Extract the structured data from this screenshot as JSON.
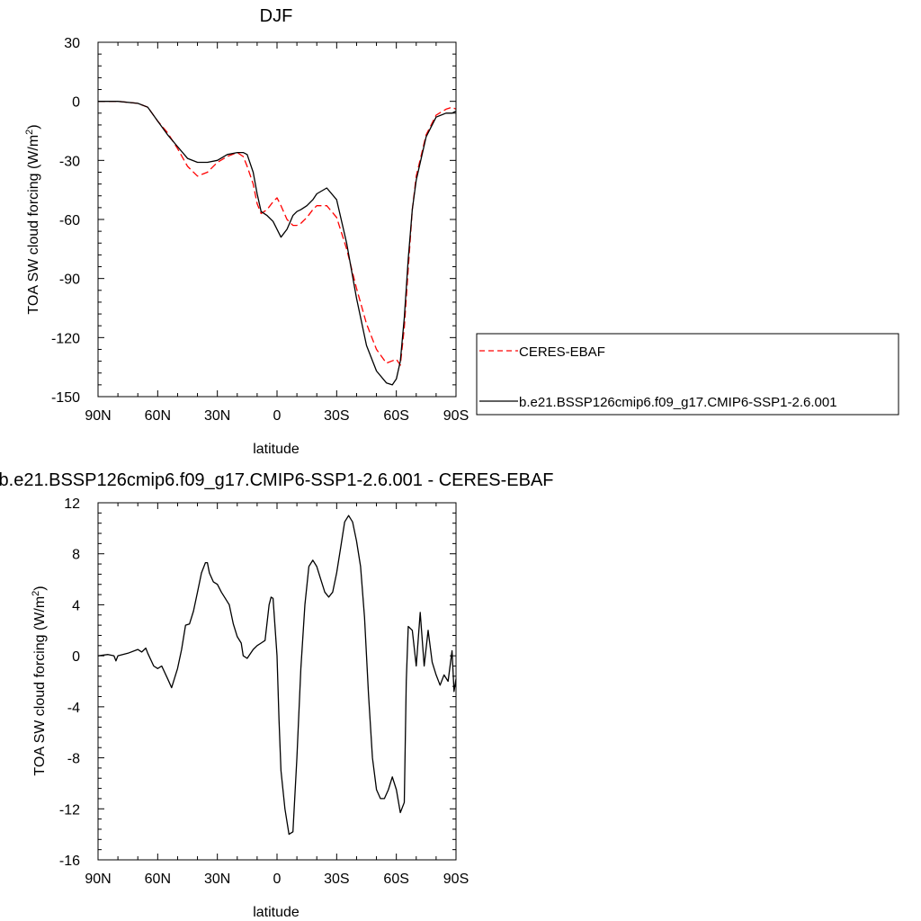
{
  "chart_data": [
    {
      "type": "line",
      "title": "DJF",
      "xlabel": "latitude",
      "ylabel": "TOA SW cloud forcing (W/m",
      "ylabel_sup": "2",
      "ylabel_close": ")",
      "xlim": [
        90,
        -90
      ],
      "ylim": [
        -150,
        30
      ],
      "x_ticks": [
        90,
        60,
        30,
        0,
        -30,
        -60,
        -90
      ],
      "x_tick_labels": [
        "90N",
        "60N",
        "30N",
        "0",
        "30S",
        "60S",
        "90S"
      ],
      "y_ticks": [
        30,
        0,
        -30,
        -60,
        -90,
        -120,
        -150
      ],
      "y_tick_labels": [
        "30",
        "0",
        "-30",
        "-60",
        "-90",
        "-120",
        "-150"
      ],
      "grid": false,
      "legend": {
        "placement": "right",
        "entries": [
          {
            "label": "CERES-EBAF",
            "color": "#ff0000",
            "dash": "dashed"
          },
          {
            "label": "b.e21.BSSP126cmip6.f09_g17.CMIP6-SSP1-2.6.001",
            "color": "#000000",
            "dash": "solid"
          }
        ]
      },
      "series": [
        {
          "name": "CERES-EBAF",
          "color": "#ff0000",
          "dash": "dashed",
          "x": [
            90,
            80,
            70,
            65,
            60,
            55,
            50,
            45,
            40,
            35,
            30,
            25,
            20,
            17,
            15,
            12,
            10,
            8,
            5,
            2,
            0,
            -2,
            -5,
            -8,
            -10,
            -12,
            -15,
            -18,
            -20,
            -25,
            -30,
            -35,
            -40,
            -45,
            -50,
            -55,
            -60,
            -62,
            -64,
            -66,
            -68,
            -70,
            -75,
            -80,
            -85,
            -88,
            -90
          ],
          "y": [
            0,
            0,
            -1,
            -3,
            -10,
            -16,
            -24,
            -33,
            -38,
            -36,
            -31,
            -28,
            -26,
            -28,
            -33,
            -42,
            -52,
            -57,
            -55,
            -51,
            -49,
            -53,
            -60,
            -63,
            -63,
            -62,
            -59,
            -55,
            -53,
            -53,
            -59,
            -75,
            -95,
            -113,
            -126,
            -133,
            -131,
            -134,
            -115,
            -85,
            -55,
            -38,
            -17,
            -7,
            -4,
            -3,
            -4
          ]
        },
        {
          "name": "b.e21.BSSP126cmip6.f09_g17.CMIP6-SSP1-2.6.001",
          "color": "#000000",
          "dash": "solid",
          "x": [
            90,
            80,
            70,
            65,
            60,
            55,
            50,
            45,
            40,
            35,
            30,
            25,
            20,
            17,
            15,
            12,
            10,
            8,
            5,
            2,
            0,
            -2,
            -5,
            -8,
            -10,
            -12,
            -15,
            -18,
            -20,
            -25,
            -30,
            -35,
            -40,
            -45,
            -50,
            -55,
            -58,
            -60,
            -62,
            -64,
            -66,
            -68,
            -70,
            -75,
            -80,
            -85,
            -88,
            -90
          ],
          "y": [
            0,
            0,
            -1,
            -3,
            -10,
            -17,
            -23,
            -29,
            -31,
            -31,
            -30,
            -27,
            -26,
            -26,
            -27,
            -36,
            -47,
            -56,
            -58,
            -61,
            -65,
            -69,
            -65,
            -58,
            -56,
            -55,
            -53,
            -50,
            -47,
            -44,
            -50,
            -72,
            -100,
            -124,
            -137,
            -143,
            -144,
            -141,
            -132,
            -110,
            -80,
            -55,
            -40,
            -18,
            -8,
            -6,
            -6,
            -5
          ]
        }
      ]
    },
    {
      "type": "line",
      "title": "b.e21.BSSP126cmip6.f09_g17.CMIP6-SSP1-2.6.001 - CERES-EBAF",
      "xlabel": "latitude",
      "ylabel": "TOA SW cloud forcing (W/m",
      "ylabel_sup": "2",
      "ylabel_close": ")",
      "xlim": [
        90,
        -90
      ],
      "ylim": [
        -16,
        12
      ],
      "x_ticks": [
        90,
        60,
        30,
        0,
        -30,
        -60,
        -90
      ],
      "x_tick_labels": [
        "90N",
        "60N",
        "30N",
        "0",
        "30S",
        "60S",
        "90S"
      ],
      "y_ticks": [
        12,
        8,
        4,
        0,
        -4,
        -8,
        -12,
        -16
      ],
      "y_tick_labels": [
        "12",
        "8",
        "4",
        "0",
        "-4",
        "-8",
        "-12",
        "-16"
      ],
      "grid": false,
      "series": [
        {
          "color": "#000000",
          "dash": "solid",
          "x": [
            90,
            85,
            82,
            81,
            80,
            75,
            70,
            68,
            66,
            65,
            62,
            60,
            58,
            55,
            53,
            50,
            48,
            46,
            44,
            42,
            40,
            38,
            36,
            35,
            34,
            32,
            30,
            28,
            26,
            24,
            22,
            20,
            18,
            17,
            15,
            12,
            10,
            8,
            6,
            4,
            3,
            2,
            0,
            -1,
            -2,
            -4,
            -6,
            -8,
            -10,
            -12,
            -14,
            -16,
            -18,
            -20,
            -22,
            -24,
            -26,
            -28,
            -30,
            -32,
            -34,
            -36,
            -38,
            -40,
            -42,
            -44,
            -46,
            -48,
            -50,
            -52,
            -54,
            -56,
            -58,
            -60,
            -62,
            -64,
            -65,
            -66,
            -68,
            -70,
            -72,
            -74,
            -76,
            -78,
            -80,
            -82,
            -84,
            -86,
            -88,
            -89,
            -90
          ],
          "y": [
            0,
            0.1,
            0,
            -0.4,
            0,
            0.2,
            0.5,
            0.3,
            0.6,
            0.2,
            -0.8,
            -1,
            -0.8,
            -1.8,
            -2.5,
            -1,
            0.5,
            2.4,
            2.5,
            3.5,
            5,
            6.5,
            7.3,
            7.3,
            6.5,
            5.8,
            5.6,
            5,
            4.5,
            4,
            2.5,
            1.5,
            1,
            0,
            -0.2,
            0.5,
            0.8,
            1,
            1.2,
            4,
            4.6,
            4.5,
            0,
            -5,
            -9,
            -12,
            -14,
            -13.8,
            -8,
            -1,
            4,
            7,
            7.5,
            7,
            6,
            5,
            4.6,
            5,
            6.5,
            8.5,
            10.5,
            11,
            10.5,
            9,
            7,
            3,
            -3,
            -8,
            -10.5,
            -11.2,
            -11.2,
            -10.5,
            -9.5,
            -10.5,
            -12.3,
            -11.5,
            -2,
            2.3,
            2,
            -0.8,
            3.4,
            -0.8,
            2,
            -0.5,
            -1.5,
            -2.3,
            -1.5,
            -2,
            0.4,
            -2.8,
            -1.8
          ]
        }
      ]
    }
  ]
}
